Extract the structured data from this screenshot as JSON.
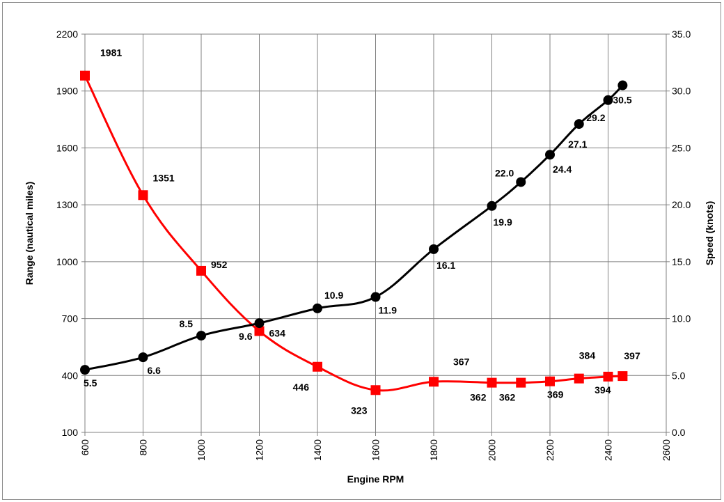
{
  "chart_data": {
    "type": "line",
    "title": "",
    "xlabel": "Engine RPM",
    "ylabel_left": "Range (nautical miles)",
    "ylabel_right": "Speed (knots)",
    "xlim": [
      600,
      2600
    ],
    "x_ticks": [
      "600",
      "800",
      "1000",
      "1200",
      "1400",
      "1600",
      "1800",
      "2000",
      "2200",
      "2400",
      "2600"
    ],
    "ylim_left": [
      100,
      2200
    ],
    "y_left_ticks": [
      "100",
      "400",
      "700",
      "1000",
      "1300",
      "1600",
      "1900",
      "2200"
    ],
    "ylim_right": [
      0,
      35
    ],
    "y_right_ticks": [
      "0.0",
      "5.0",
      "10.0",
      "15.0",
      "20.0",
      "25.0",
      "30.0",
      "35.0"
    ],
    "grid": true,
    "legend": "none",
    "series": [
      {
        "axis": "left",
        "color": "#ff0000",
        "marker": "square",
        "x": [
          600,
          800,
          1000,
          1200,
          1400,
          1600,
          1800,
          2000,
          2100,
          2200,
          2300,
          2400,
          2450
        ],
        "values": [
          1981,
          1351,
          952,
          634,
          446,
          323,
          367,
          362,
          362,
          369,
          384,
          394,
          397
        ],
        "labels": [
          "1981",
          "1351",
          "952",
          "634",
          "446",
          "323",
          "367",
          "362",
          "362",
          "369",
          "384",
          "394",
          "397"
        ]
      },
      {
        "axis": "right",
        "color": "#000000",
        "marker": "circle",
        "x": [
          600,
          800,
          1000,
          1200,
          1400,
          1600,
          1800,
          2000,
          2100,
          2200,
          2300,
          2400,
          2450
        ],
        "values": [
          5.5,
          6.6,
          8.5,
          9.6,
          10.9,
          11.9,
          16.1,
          19.9,
          22.0,
          24.4,
          27.1,
          29.2,
          30.5
        ],
        "labels": [
          "5.5",
          "6.6",
          "8.5",
          "9.6",
          "10.9",
          "11.9",
          "16.1",
          "19.9",
          "22.0",
          "24.4",
          "27.1",
          "29.2",
          "30.5"
        ]
      }
    ]
  }
}
